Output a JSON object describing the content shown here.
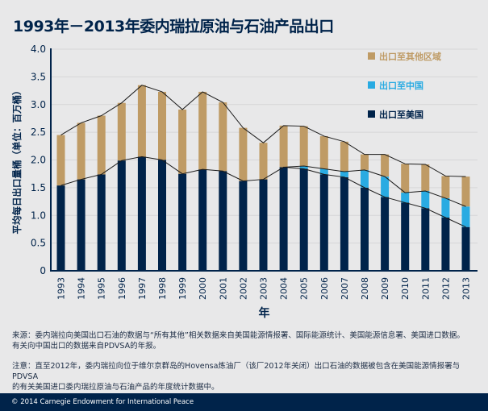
{
  "title": "1993年－2013年委内瑞拉原油与石油产品出口",
  "notes": {
    "source_1": "来源：委内瑞拉向美国出口石油的数据与“所有其他”相关数据来自美国能源情报署、国际能源统计、美国能源信息署、美国进口数据。",
    "source_2": "有关向中国出口的数据来自PDVSA的年报。",
    "note_1": "注意：直至2012年，委内瑞拉向位于维尔京群岛的Hovensa炼油厂（该厂2012年关闭）出口石油的数据被包含在美国能源情报署与PDVSA",
    "note_2": "的有关美国进口委内瑞拉原油与石油产品的年度统计数据中。"
  },
  "footer": "© 2014 Carnegie Endowment for International Peace",
  "chart_data": {
    "type": "bar",
    "stacked": true,
    "title": "1993年－2013年委内瑞拉原油与石油产品出口",
    "xlabel": "年",
    "ylabel": "平均每日出口量桶（单位：百万桶）",
    "ylim": [
      0,
      4.0
    ],
    "yticks": [
      "0",
      "0.5",
      "1.0",
      "1.5",
      "2.0",
      "2.5",
      "3.0",
      "3.5",
      "4.0"
    ],
    "grid": true,
    "legend_position": "top-right",
    "categories": [
      "1993",
      "1994",
      "1995",
      "1996",
      "1997",
      "1998",
      "1999",
      "2000",
      "2001",
      "2002",
      "2003",
      "2004",
      "2005",
      "2006",
      "2007",
      "2008",
      "2009",
      "2010",
      "2011",
      "2012",
      "2013"
    ],
    "series": [
      {
        "name": "出口至美国",
        "color": "#00234a",
        "values": [
          1.54,
          1.65,
          1.74,
          1.99,
          2.06,
          2.0,
          1.75,
          1.83,
          1.8,
          1.62,
          1.65,
          1.87,
          1.84,
          1.74,
          1.69,
          1.5,
          1.33,
          1.23,
          1.13,
          0.96,
          0.79
        ]
      },
      {
        "name": "出口至中国",
        "color": "#29abe2",
        "values": [
          0,
          0,
          0,
          0,
          0,
          0,
          0,
          0,
          0,
          0,
          0,
          0,
          0.05,
          0.1,
          0.1,
          0.32,
          0.37,
          0.18,
          0.31,
          0.35,
          0.37
        ]
      },
      {
        "name": "出口至其他区域",
        "color": "#bf9b65",
        "values": [
          0.91,
          1.02,
          1.06,
          1.04,
          1.29,
          1.23,
          1.16,
          1.4,
          1.24,
          0.96,
          0.66,
          0.75,
          0.72,
          0.59,
          0.54,
          0.28,
          0.4,
          0.52,
          0.48,
          0.4,
          0.54
        ]
      }
    ]
  }
}
